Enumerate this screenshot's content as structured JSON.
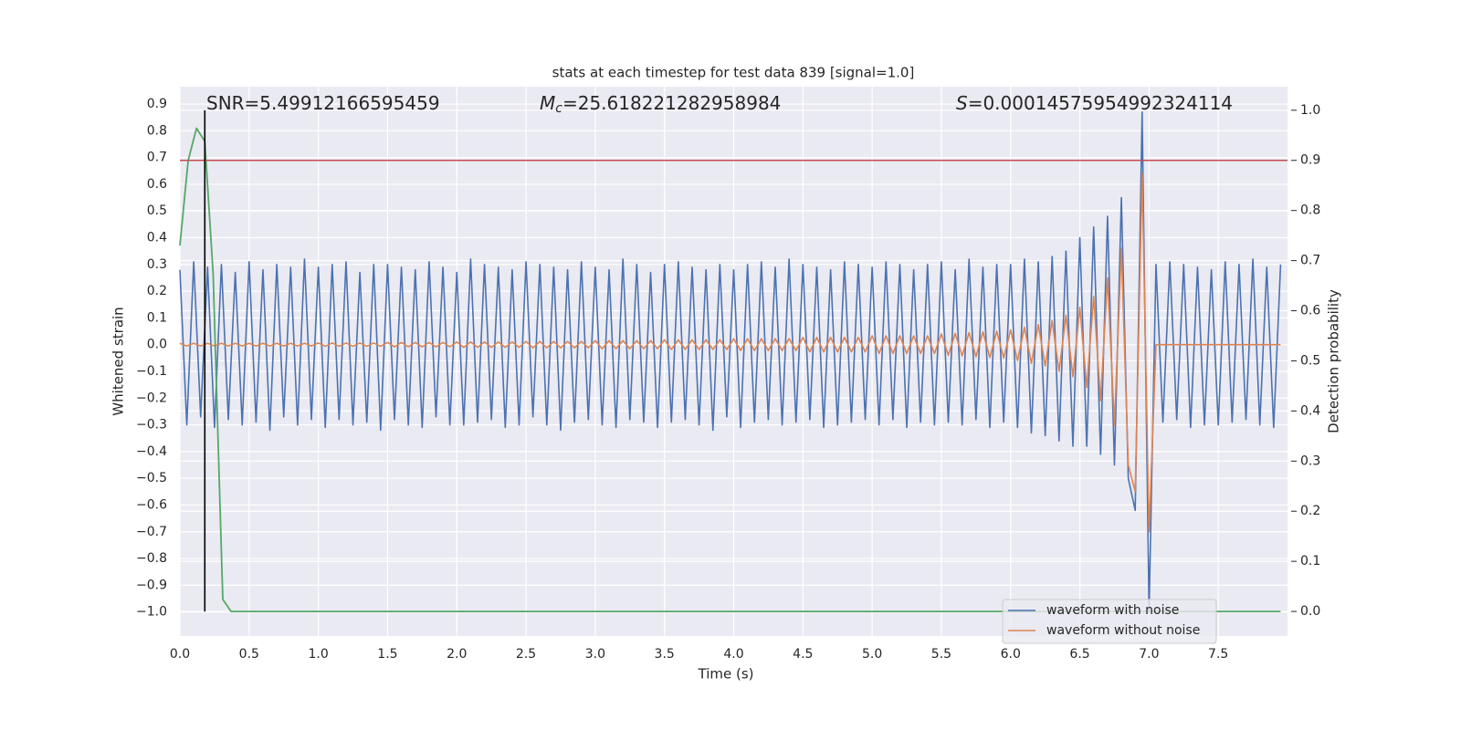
{
  "chart_data": {
    "type": "line",
    "title": "stats at each timestep for test data 839 [signal=1.0]",
    "xlabel": "Time (s)",
    "ylabel": "Whitened strain",
    "y2label": "Detection probability",
    "xlim": [
      0,
      8.0
    ],
    "ylim": [
      -1.09,
      0.965
    ],
    "y2lim": [
      -0.049,
      1.047
    ],
    "grid": true,
    "legend": "lower right",
    "xticks": [
      {
        "value": 0,
        "label": "0.0"
      },
      0.5,
      {
        "value": 1,
        "label": "1.0"
      },
      1.5,
      {
        "value": 2,
        "label": "2.0"
      },
      2.5,
      {
        "value": 3,
        "label": "3.0"
      },
      3.5,
      {
        "value": 4,
        "label": "4.0"
      },
      4.5,
      {
        "value": 5,
        "label": "5.0"
      },
      5.5,
      {
        "value": 6,
        "label": "6.0"
      },
      6.5,
      {
        "value": 7,
        "label": "7.0"
      },
      7.5
    ],
    "yticks": [
      0.9,
      0.8,
      0.7,
      0.6,
      0.5,
      0.4,
      0.3,
      0.2,
      0.1,
      {
        "value": 0,
        "label": "0.0"
      },
      {
        "value": -0.1,
        "label": "−0.1"
      },
      {
        "value": -0.2,
        "label": "−0.2"
      },
      {
        "value": -0.3,
        "label": "−0.3"
      },
      {
        "value": -0.4,
        "label": "−0.4"
      },
      {
        "value": -0.5,
        "label": "−0.5"
      },
      {
        "value": -0.6,
        "label": "−0.6"
      },
      {
        "value": -0.7,
        "label": "−0.7"
      },
      {
        "value": -0.8,
        "label": "−0.8"
      },
      {
        "value": -0.9,
        "label": "−0.9"
      },
      {
        "value": -1,
        "label": "−1.0"
      }
    ],
    "y2ticks": [
      {
        "value": 1,
        "label": "1.0"
      },
      0.9,
      0.8,
      0.7,
      0.6,
      0.5,
      0.4,
      0.3,
      0.2,
      0.1,
      {
        "value": 0,
        "label": "0.0"
      }
    ],
    "annotations": [
      {
        "text": "SNR=5.49912166595459"
      },
      {
        "symbol": "M",
        "subscript": "c",
        "text": "=25.618221282958984"
      },
      {
        "symbol": "S",
        "text": "=0.00014575954992324114"
      }
    ],
    "x": [
      0,
      0.05,
      0.1,
      0.15,
      0.2,
      0.25,
      0.3,
      0.35,
      0.4,
      0.45,
      0.5,
      0.55,
      0.6,
      0.65,
      0.7,
      0.75,
      0.8,
      0.85,
      0.9,
      0.95,
      1,
      1.05,
      1.1,
      1.15,
      1.2,
      1.25,
      1.3,
      1.35,
      1.4,
      1.45,
      1.5,
      1.55,
      1.6,
      1.65,
      1.7,
      1.75,
      1.8,
      1.85,
      1.9,
      1.95,
      2,
      2.05,
      2.1,
      2.15,
      2.2,
      2.25,
      2.3,
      2.35,
      2.4,
      2.45,
      2.5,
      2.55,
      2.6,
      2.65,
      2.7,
      2.75,
      2.8,
      2.85,
      2.9,
      2.95,
      3,
      3.05,
      3.1,
      3.15,
      3.2,
      3.25,
      3.3,
      3.35,
      3.4,
      3.45,
      3.5,
      3.55,
      3.6,
      3.65,
      3.7,
      3.75,
      3.8,
      3.85,
      3.9,
      3.95,
      4,
      4.05,
      4.1,
      4.15,
      4.2,
      4.25,
      4.3,
      4.35,
      4.4,
      4.45,
      4.5,
      4.55,
      4.6,
      4.65,
      4.7,
      4.75,
      4.8,
      4.85,
      4.9,
      4.95,
      5,
      5.05,
      5.1,
      5.15,
      5.2,
      5.25,
      5.3,
      5.35,
      5.4,
      5.45,
      5.5,
      5.55,
      5.6,
      5.65,
      5.7,
      5.75,
      5.8,
      5.85,
      5.9,
      5.95,
      6,
      6.05,
      6.1,
      6.15,
      6.2,
      6.25,
      6.3,
      6.35,
      6.4,
      6.45,
      6.5,
      6.55,
      6.6,
      6.65,
      6.7,
      6.75,
      6.8,
      6.85,
      6.9,
      6.95,
      7,
      7.05,
      7.1,
      7.15,
      7.2,
      7.25,
      7.3,
      7.35,
      7.4,
      7.45,
      7.5,
      7.55,
      7.6,
      7.65,
      7.7,
      7.75,
      7.8,
      7.85,
      7.9,
      7.95
    ],
    "series": [
      {
        "name": "waveform with noise",
        "color": "#4c72b0",
        "values": [
          0.28,
          -0.3,
          0.31,
          -0.27,
          0.29,
          -0.31,
          0.3,
          -0.28,
          0.27,
          -0.3,
          0.31,
          -0.29,
          0.28,
          -0.32,
          0.3,
          -0.27,
          0.29,
          -0.3,
          0.32,
          -0.28,
          0.29,
          -0.31,
          0.3,
          -0.28,
          0.31,
          -0.3,
          0.27,
          -0.29,
          0.3,
          -0.32,
          0.3,
          -0.28,
          0.29,
          -0.3,
          0.28,
          -0.31,
          0.31,
          -0.27,
          0.29,
          -0.3,
          0.27,
          -0.3,
          0.32,
          -0.29,
          0.3,
          -0.28,
          0.29,
          -0.31,
          0.28,
          -0.3,
          0.31,
          -0.27,
          0.3,
          -0.3,
          0.29,
          -0.32,
          0.28,
          -0.29,
          0.31,
          -0.28,
          0.29,
          -0.3,
          0.28,
          -0.31,
          0.32,
          -0.28,
          0.3,
          -0.29,
          0.27,
          -0.31,
          0.3,
          -0.29,
          0.31,
          -0.28,
          0.29,
          -0.3,
          0.28,
          -0.32,
          0.3,
          -0.27,
          0.28,
          -0.31,
          0.3,
          -0.29,
          0.31,
          -0.28,
          0.29,
          -0.3,
          0.32,
          -0.29,
          0.3,
          -0.28,
          0.29,
          -0.31,
          0.28,
          -0.3,
          0.31,
          -0.29,
          0.3,
          -0.28,
          0.29,
          -0.3,
          0.31,
          -0.28,
          0.3,
          -0.31,
          0.28,
          -0.29,
          0.3,
          -0.3,
          0.31,
          -0.29,
          0.28,
          -0.3,
          0.32,
          -0.28,
          0.29,
          -0.31,
          0.3,
          -0.29,
          0.3,
          -0.31,
          0.32,
          -0.33,
          0.31,
          -0.34,
          0.33,
          -0.36,
          0.35,
          -0.38,
          0.4,
          -0.38,
          0.44,
          -0.41,
          0.48,
          -0.45,
          0.55,
          -0.5,
          -0.62,
          0.87,
          -1.0,
          0.3,
          -0.29,
          0.31,
          -0.28,
          0.3,
          -0.31,
          0.29,
          -0.3,
          0.28,
          -0.3,
          0.31,
          -0.29,
          0.3,
          -0.28,
          0.32,
          -0.3,
          0.29,
          -0.31,
          0.3
        ]
      },
      {
        "name": "waveform without noise",
        "color": "#dd8452",
        "values": [
          0.005,
          -0.005,
          0.005,
          -0.005,
          0.005,
          -0.005,
          0.005,
          -0.005,
          0.005,
          -0.005,
          0.005,
          -0.005,
          0.005,
          -0.005,
          0.005,
          -0.005,
          0.005,
          -0.005,
          0.005,
          -0.005,
          0.006,
          -0.006,
          0.006,
          -0.006,
          0.006,
          -0.006,
          0.006,
          -0.006,
          0.006,
          -0.006,
          0.008,
          -0.008,
          0.008,
          -0.008,
          0.008,
          -0.008,
          0.008,
          -0.008,
          0.008,
          -0.008,
          0.01,
          -0.01,
          0.01,
          -0.01,
          0.01,
          -0.01,
          0.01,
          -0.01,
          0.01,
          -0.01,
          0.012,
          -0.012,
          0.012,
          -0.012,
          0.012,
          -0.012,
          0.012,
          -0.012,
          0.012,
          -0.012,
          0.015,
          -0.015,
          0.015,
          -0.015,
          0.015,
          -0.015,
          0.015,
          -0.015,
          0.015,
          -0.015,
          0.018,
          -0.018,
          0.018,
          -0.018,
          0.018,
          -0.018,
          0.018,
          -0.018,
          0.018,
          -0.018,
          0.022,
          -0.022,
          0.022,
          -0.022,
          0.022,
          -0.022,
          0.022,
          -0.022,
          0.022,
          -0.022,
          0.027,
          -0.027,
          0.027,
          -0.027,
          0.027,
          -0.027,
          0.027,
          -0.027,
          0.027,
          -0.027,
          0.033,
          -0.033,
          0.033,
          -0.033,
          0.033,
          -0.033,
          0.033,
          -0.033,
          0.033,
          -0.033,
          0.04,
          -0.04,
          0.042,
          -0.042,
          0.045,
          -0.045,
          0.048,
          -0.048,
          0.05,
          -0.05,
          0.055,
          -0.06,
          0.065,
          -0.07,
          0.075,
          -0.08,
          0.09,
          -0.1,
          0.11,
          -0.12,
          0.14,
          -0.16,
          0.18,
          -0.21,
          0.25,
          -0.3,
          0.36,
          -0.45,
          -0.55,
          0.64,
          -0.7,
          0,
          0,
          0,
          0,
          0,
          0,
          0,
          0,
          0,
          0,
          0,
          0,
          0,
          0,
          0,
          0,
          0,
          0,
          0
        ]
      }
    ],
    "probability": {
      "color": "#55a868",
      "axis": "y2",
      "x": [
        0,
        0.06,
        0.12,
        0.18,
        0.24,
        0.31,
        0.37,
        7.95
      ],
      "values": [
        0.73,
        0.9,
        0.964,
        0.938,
        0.674,
        0.024,
        0,
        0
      ]
    },
    "threshold": {
      "value": 0.9,
      "axis": "y2",
      "color": "#c44e52"
    },
    "vline": {
      "x": 0.18,
      "color": "#000000",
      "range": [
        0,
        1
      ]
    }
  }
}
